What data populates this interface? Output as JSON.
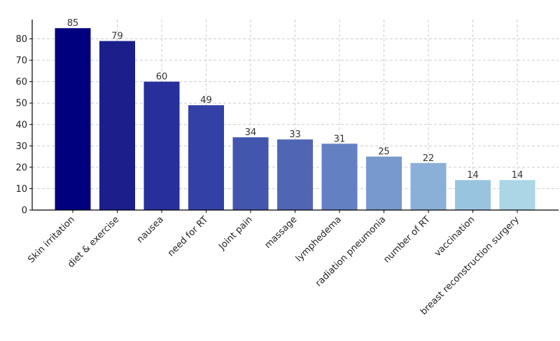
{
  "chart_data": {
    "type": "bar",
    "title": "",
    "xlabel": "",
    "ylabel": "",
    "categories": [
      "Skin irritation",
      "diet & exercise",
      "nausea",
      "need for RT",
      "Joint pain",
      "massage",
      "lymphedema",
      "radiation pneumonia",
      "number of RT",
      "vaccination",
      "breast reconstruction surgery"
    ],
    "values": [
      85,
      79,
      60,
      49,
      34,
      33,
      31,
      25,
      22,
      14,
      14
    ],
    "colors": [
      "#00007f",
      "#1a1f8c",
      "#262f9c",
      "#3340a6",
      "#4356ad",
      "#5066b5",
      "#6381c2",
      "#7899cc",
      "#8ab0d8",
      "#99c4e0",
      "#aad6e6"
    ],
    "ylim": [
      0,
      89
    ],
    "yticks": [
      0,
      10,
      20,
      30,
      40,
      50,
      60,
      70,
      80
    ],
    "grid": true,
    "legend": "none"
  }
}
